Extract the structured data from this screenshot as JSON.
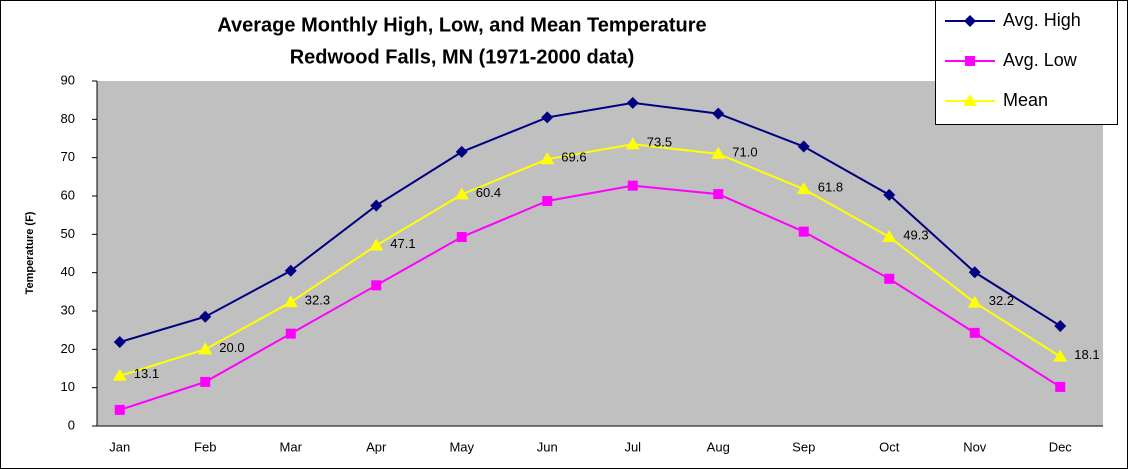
{
  "chart_data": {
    "type": "line",
    "title": "Average Monthly High, Low, and Mean Temperature",
    "subtitle": "Redwood Falls, MN (1971-2000 data)",
    "y_label": "Temperature (F)",
    "categories": [
      "Jan",
      "Feb",
      "Mar",
      "Apr",
      "May",
      "Jun",
      "Jul",
      "Aug",
      "Sep",
      "Oct",
      "Nov",
      "Dec"
    ],
    "series": [
      {
        "name": "Avg. High",
        "color": "#000080",
        "marker": "diamond",
        "values": [
          21.9,
          28.5,
          40.5,
          57.5,
          71.5,
          80.5,
          84.3,
          81.5,
          72.9,
          60.3,
          40.1,
          26.1
        ]
      },
      {
        "name": "Avg. Low",
        "color": "#ff00ff",
        "marker": "square",
        "values": [
          4.2,
          11.5,
          24.1,
          36.7,
          49.3,
          58.7,
          62.7,
          60.5,
          50.7,
          38.4,
          24.3,
          10.2
        ]
      },
      {
        "name": "Mean",
        "color": "#ffff00",
        "marker": "triangle",
        "values": [
          13.1,
          20.0,
          32.3,
          47.1,
          60.4,
          69.6,
          73.5,
          71.0,
          61.8,
          49.3,
          32.2,
          18.1
        ],
        "value_labels": [
          "13.1",
          "20.0",
          "32.3",
          "47.1",
          "60.4",
          "69.6",
          "73.5",
          "71.0",
          "61.8",
          "49.3",
          "32.2",
          "18.1"
        ]
      }
    ],
    "ylim": [
      0,
      90
    ],
    "yticks": [
      0,
      10,
      20,
      30,
      40,
      50,
      60,
      70,
      80,
      90
    ],
    "plot_background": "#c0c0c0",
    "legend": "top-right"
  }
}
